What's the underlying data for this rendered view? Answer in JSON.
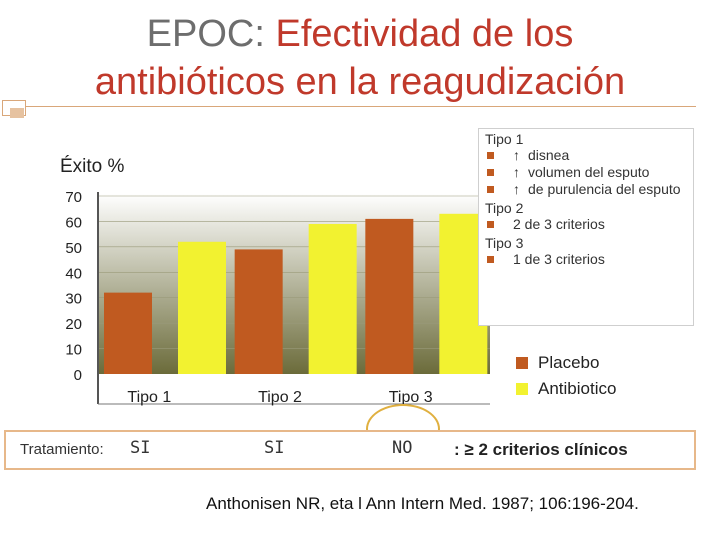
{
  "title": {
    "lead": "EPOC:",
    "rest_line1": "Efectividad de los",
    "line2": "antibióticos en la reagudización"
  },
  "legend_criteria": {
    "groups": [
      {
        "name": "Tipo 1",
        "items": [
          {
            "arrow": "↑",
            "text": "disnea"
          },
          {
            "arrow": "↑",
            "text": "volumen del esputo"
          },
          {
            "arrow": "↑",
            "text": "de purulencia del esputo"
          }
        ]
      },
      {
        "name": "Tipo 2",
        "items": [
          {
            "arrow": "",
            "text": "2 de 3 criterios"
          }
        ]
      },
      {
        "name": "Tipo 3",
        "items": [
          {
            "arrow": "",
            "text": "1 de 3 criterios"
          }
        ]
      }
    ]
  },
  "treatment": {
    "label": "Tratamiento:",
    "values": [
      "SI",
      "SI",
      "NO"
    ],
    "note": ": ≥ 2 criterios clínicos"
  },
  "citation": "Anthonisen NR, eta l Ann Intern Med. 1987; 106:196-204.",
  "colors": {
    "placebo": "#c05a20",
    "antibiotico": "#f2f230",
    "wall": "#6b6b3a"
  },
  "chart_data": {
    "type": "bar",
    "ylabel": "Éxito %",
    "ylim": [
      0,
      70
    ],
    "yticks": [
      "70",
      "60",
      "50",
      "40",
      "30",
      "20",
      "10",
      "0"
    ],
    "categories": [
      "Tipo 1",
      "Tipo 2",
      "Tipo 3"
    ],
    "series": [
      {
        "name": "Placebo",
        "values": [
          32,
          49,
          61
        ]
      },
      {
        "name": "Antibiotico",
        "values": [
          52,
          59,
          63
        ]
      }
    ],
    "legend_position": "right"
  }
}
